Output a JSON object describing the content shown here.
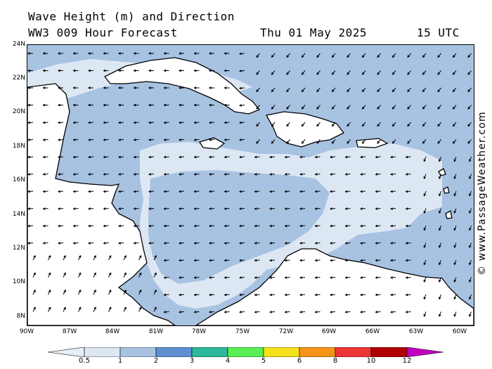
{
  "header": {
    "title": "Wave Height (m) and Direction",
    "model": "WW3 009 Hour Forecast",
    "date": "Thu 01 May 2025",
    "time": "15 UTC"
  },
  "credit": "© www.PassageWeather.com",
  "map": {
    "lat_labels": [
      "24N",
      "22N",
      "20N",
      "18N",
      "16N",
      "14N",
      "12N",
      "10N",
      "8N"
    ],
    "lon_labels": [
      "90W",
      "87W",
      "84W",
      "81W",
      "78W",
      "75W",
      "72W",
      "69W",
      "66W",
      "63W",
      "60W"
    ],
    "colors": {
      "land": "#ffffff",
      "sea_1_2": "#a8c2e2",
      "sea_05_1": "#dde7f4",
      "coast": "#000000",
      "border": "#9a9a9a"
    }
  },
  "colorbar": {
    "labels": [
      "0.5",
      "1",
      "2",
      "3",
      "4",
      "5",
      "6",
      "8",
      "10",
      "12"
    ],
    "colors": [
      "#e8eef8",
      "#dde6f3",
      "#a8c2e2",
      "#5e8fd0",
      "#2bb89b",
      "#5aef55",
      "#f6e21a",
      "#f59417",
      "#ec3535",
      "#b00000",
      "#c000c0"
    ]
  }
}
